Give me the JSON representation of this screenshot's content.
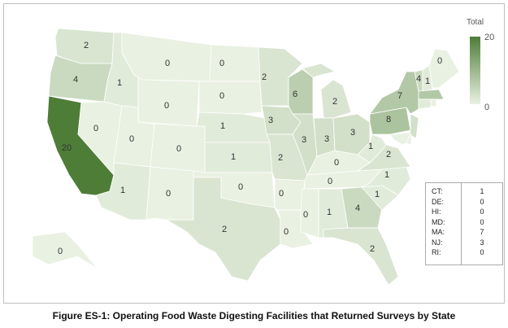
{
  "caption": "Figure ES-1: Operating Food Waste Digesting Facilities that Returned Surveys by State",
  "legend": {
    "title": "Total",
    "max": "20",
    "min": "0",
    "color_max": "#4e7d38",
    "color_min": "#e9f1e2"
  },
  "states": [
    {
      "abbr": "WA",
      "value": 2
    },
    {
      "abbr": "OR",
      "value": 4
    },
    {
      "abbr": "CA",
      "value": 20
    },
    {
      "abbr": "NV",
      "value": 0
    },
    {
      "abbr": "ID",
      "value": 1
    },
    {
      "abbr": "MT",
      "value": 0
    },
    {
      "abbr": "WY",
      "value": 0
    },
    {
      "abbr": "UT",
      "value": 0
    },
    {
      "abbr": "AZ",
      "value": 1
    },
    {
      "abbr": "CO",
      "value": 0
    },
    {
      "abbr": "NM",
      "value": 0
    },
    {
      "abbr": "ND",
      "value": 0
    },
    {
      "abbr": "SD",
      "value": 0
    },
    {
      "abbr": "NE",
      "value": 1
    },
    {
      "abbr": "KS",
      "value": 1
    },
    {
      "abbr": "OK",
      "value": 0
    },
    {
      "abbr": "TX",
      "value": 2
    },
    {
      "abbr": "MN",
      "value": 2
    },
    {
      "abbr": "IA",
      "value": 3
    },
    {
      "abbr": "MO",
      "value": 2
    },
    {
      "abbr": "AR",
      "value": 0
    },
    {
      "abbr": "LA",
      "value": 0
    },
    {
      "abbr": "WI",
      "value": 6
    },
    {
      "abbr": "IL",
      "value": 3
    },
    {
      "abbr": "MI",
      "value": 2
    },
    {
      "abbr": "IN",
      "value": 3
    },
    {
      "abbr": "OH",
      "value": 3
    },
    {
      "abbr": "KY",
      "value": 0
    },
    {
      "abbr": "TN",
      "value": 0
    },
    {
      "abbr": "MS",
      "value": 0
    },
    {
      "abbr": "AL",
      "value": 1
    },
    {
      "abbr": "GA",
      "value": 4
    },
    {
      "abbr": "FL",
      "value": 2
    },
    {
      "abbr": "SC",
      "value": 1
    },
    {
      "abbr": "NC",
      "value": 1
    },
    {
      "abbr": "VA",
      "value": 2
    },
    {
      "abbr": "WV",
      "value": 1
    },
    {
      "abbr": "PA",
      "value": 8
    },
    {
      "abbr": "NY",
      "value": 7
    },
    {
      "abbr": "VT",
      "value": 4
    },
    {
      "abbr": "NH",
      "value": 1
    },
    {
      "abbr": "ME",
      "value": 0
    },
    {
      "abbr": "AK",
      "value": 0
    },
    {
      "abbr": "MA",
      "value": 7
    },
    {
      "abbr": "CT",
      "value": 1
    },
    {
      "abbr": "RI",
      "value": 0
    },
    {
      "abbr": "NJ",
      "value": 3
    },
    {
      "abbr": "DE",
      "value": 0
    },
    {
      "abbr": "MD",
      "value": 0
    },
    {
      "abbr": "HI",
      "value": 0
    }
  ],
  "inset_table": [
    {
      "label": "CT:",
      "value": "1"
    },
    {
      "label": "DE:",
      "value": "0"
    },
    {
      "label": "HI:",
      "value": "0"
    },
    {
      "label": "MD:",
      "value": "0"
    },
    {
      "label": "MA:",
      "value": "7"
    },
    {
      "label": "NJ:",
      "value": "3"
    },
    {
      "label": "RI:",
      "value": "0"
    }
  ]
}
